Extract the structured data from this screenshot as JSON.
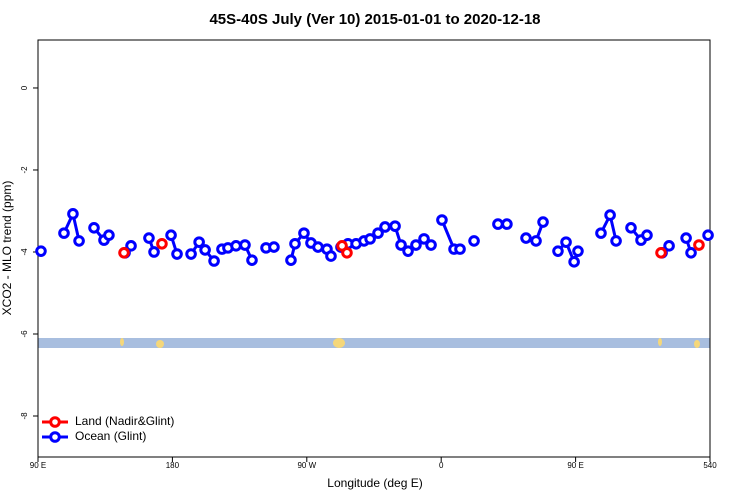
{
  "chart_data": {
    "type": "line",
    "title": "45S-40S July (Ver 10)   2015-01-01 to 2020-12-18",
    "x_label": "Longitude (deg E)",
    "y_label": "XCO2 - MLO trend (ppm)",
    "xlim": [
      90,
      540
    ],
    "ylim": [
      -9.0,
      1.17
    ],
    "xticks": [
      {
        "value": 90,
        "label": "90 E"
      },
      180,
      {
        "value": 270,
        "label": "90 W"
      },
      {
        "value": 360,
        "label": "0"
      },
      {
        "value": 450,
        "label": "90 E"
      },
      540
    ],
    "yticks": [
      0,
      -2,
      -4,
      -6,
      -8
    ],
    "legend": "bottom-left",
    "series": [
      {
        "name": "Land (Nadir&Glint)",
        "color": "#ff0000",
        "x": [
          147.6,
          null,
          173,
          null,
          293.6,
          296.9,
          null,
          507.2,
          null,
          532.6
        ],
        "values": [
          -4.02,
          null,
          -3.8,
          null,
          -3.85,
          -4.02,
          null,
          -4.02,
          null,
          -3.83
        ]
      },
      {
        "name": "Ocean (Glint)",
        "color": "#0000ff",
        "x": [
          92,
          null,
          107.4,
          113.4,
          117.5,
          null,
          127.5,
          134.2,
          137.5,
          null,
          148.3,
          152.3,
          null,
          164.3,
          167.7,
          null,
          179.1,
          183.1,
          null,
          192.5,
          197.9,
          201.9,
          207.9,
          null,
          213.2,
          217.2,
          222.6,
          228.6,
          233.3,
          null,
          242.7,
          248,
          null,
          259.4,
          262.1,
          268.1,
          272.8,
          277.5,
          283.5,
          286.2,
          null,
          292.9,
          297.6,
          303,
          308.3,
          312.4,
          317.7,
          322.4,
          329.1,
          333.1,
          337.8,
          343.1,
          348.5,
          353.2,
          null,
          360.5,
          368.6,
          372.6,
          null,
          382,
          null,
          398,
          404,
          null,
          416.8,
          423.5,
          428.2,
          null,
          438.2,
          443.6,
          449,
          451.6,
          null,
          467,
          473.1,
          477.1,
          null,
          487.1,
          493.8,
          497.8,
          null,
          507.9,
          512.6,
          null,
          524,
          527.3,
          null,
          538.7
        ],
        "values": [
          -3.98,
          null,
          -3.54,
          -3.07,
          -3.73,
          null,
          -3.41,
          -3.71,
          -3.59,
          null,
          -4.02,
          -3.85,
          null,
          -3.66,
          -4.0,
          null,
          -3.59,
          -4.05,
          null,
          -4.05,
          -3.76,
          -3.95,
          -4.22,
          null,
          -3.93,
          -3.9,
          -3.85,
          -3.83,
          -4.2,
          null,
          -3.9,
          -3.88,
          null,
          -4.2,
          -3.8,
          -3.54,
          -3.78,
          -3.88,
          -3.93,
          -4.1,
          null,
          -3.88,
          -3.8,
          -3.8,
          -3.73,
          -3.68,
          -3.54,
          -3.39,
          -3.37,
          -3.83,
          -3.98,
          -3.83,
          -3.68,
          -3.83,
          null,
          -3.22,
          -3.93,
          -3.93,
          null,
          -3.73,
          null,
          -3.32,
          -3.32,
          null,
          -3.66,
          -3.73,
          -3.27,
          null,
          -3.98,
          -3.76,
          -4.24,
          -3.98,
          null,
          -3.54,
          -3.1,
          -3.73,
          null,
          -3.41,
          -3.71,
          -3.59,
          null,
          -4.02,
          -3.85,
          null,
          -3.66,
          -4.02,
          null,
          -3.59
        ]
      }
    ]
  }
}
